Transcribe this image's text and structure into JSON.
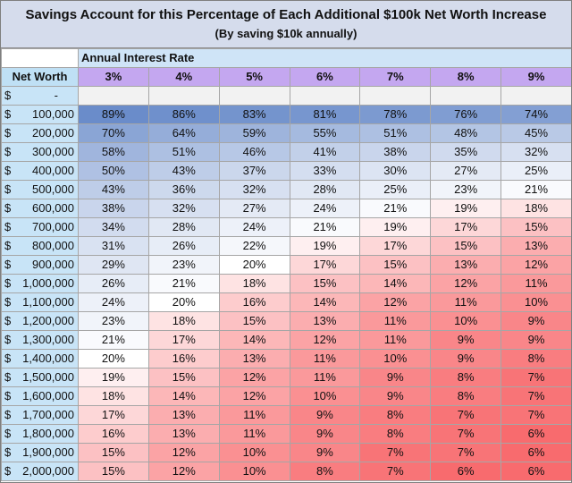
{
  "title": "Savings Account for this Percentage of Each Additional $100k Net Worth Increase",
  "subtitle": "(By saving $10k annually)",
  "rate_label": "Annual Interest Rate",
  "net_worth_header": "Net Worth",
  "rates": [
    "3%",
    "4%",
    "5%",
    "6%",
    "7%",
    "8%",
    "9%"
  ],
  "currency_symbol": "$",
  "first_row_amount": "-",
  "rows": [
    {
      "amount": "100,000",
      "values": [
        "89%",
        "86%",
        "83%",
        "81%",
        "78%",
        "76%",
        "74%"
      ]
    },
    {
      "amount": "200,000",
      "values": [
        "70%",
        "64%",
        "59%",
        "55%",
        "51%",
        "48%",
        "45%"
      ]
    },
    {
      "amount": "300,000",
      "values": [
        "58%",
        "51%",
        "46%",
        "41%",
        "38%",
        "35%",
        "32%"
      ]
    },
    {
      "amount": "400,000",
      "values": [
        "50%",
        "43%",
        "37%",
        "33%",
        "30%",
        "27%",
        "25%"
      ]
    },
    {
      "amount": "500,000",
      "values": [
        "43%",
        "36%",
        "32%",
        "28%",
        "25%",
        "23%",
        "21%"
      ]
    },
    {
      "amount": "600,000",
      "values": [
        "38%",
        "32%",
        "27%",
        "24%",
        "21%",
        "19%",
        "18%"
      ]
    },
    {
      "amount": "700,000",
      "values": [
        "34%",
        "28%",
        "24%",
        "21%",
        "19%",
        "17%",
        "15%"
      ]
    },
    {
      "amount": "800,000",
      "values": [
        "31%",
        "26%",
        "22%",
        "19%",
        "17%",
        "15%",
        "13%"
      ]
    },
    {
      "amount": "900,000",
      "values": [
        "29%",
        "23%",
        "20%",
        "17%",
        "15%",
        "13%",
        "12%"
      ]
    },
    {
      "amount": "1,000,000",
      "values": [
        "26%",
        "21%",
        "18%",
        "15%",
        "14%",
        "12%",
        "11%"
      ]
    },
    {
      "amount": "1,100,000",
      "values": [
        "24%",
        "20%",
        "16%",
        "14%",
        "12%",
        "11%",
        "10%"
      ]
    },
    {
      "amount": "1,200,000",
      "values": [
        "23%",
        "18%",
        "15%",
        "13%",
        "11%",
        "10%",
        "9%"
      ]
    },
    {
      "amount": "1,300,000",
      "values": [
        "21%",
        "17%",
        "14%",
        "12%",
        "11%",
        "9%",
        "9%"
      ]
    },
    {
      "amount": "1,400,000",
      "values": [
        "20%",
        "16%",
        "13%",
        "11%",
        "10%",
        "9%",
        "8%"
      ]
    },
    {
      "amount": "1,500,000",
      "values": [
        "19%",
        "15%",
        "12%",
        "11%",
        "9%",
        "8%",
        "7%"
      ]
    },
    {
      "amount": "1,600,000",
      "values": [
        "18%",
        "14%",
        "12%",
        "10%",
        "9%",
        "8%",
        "7%"
      ]
    },
    {
      "amount": "1,700,000",
      "values": [
        "17%",
        "13%",
        "11%",
        "9%",
        "8%",
        "7%",
        "7%"
      ]
    },
    {
      "amount": "1,800,000",
      "values": [
        "16%",
        "13%",
        "11%",
        "9%",
        "8%",
        "7%",
        "6%"
      ]
    },
    {
      "amount": "1,900,000",
      "values": [
        "15%",
        "12%",
        "10%",
        "9%",
        "7%",
        "7%",
        "6%"
      ]
    },
    {
      "amount": "2,000,000",
      "values": [
        "15%",
        "12%",
        "10%",
        "8%",
        "7%",
        "6%",
        "6%"
      ]
    }
  ],
  "colors": {
    "high": "#6a8cca",
    "mid": "#ffffff",
    "low": "#f86b6e",
    "midpoint_percent": 20
  }
}
